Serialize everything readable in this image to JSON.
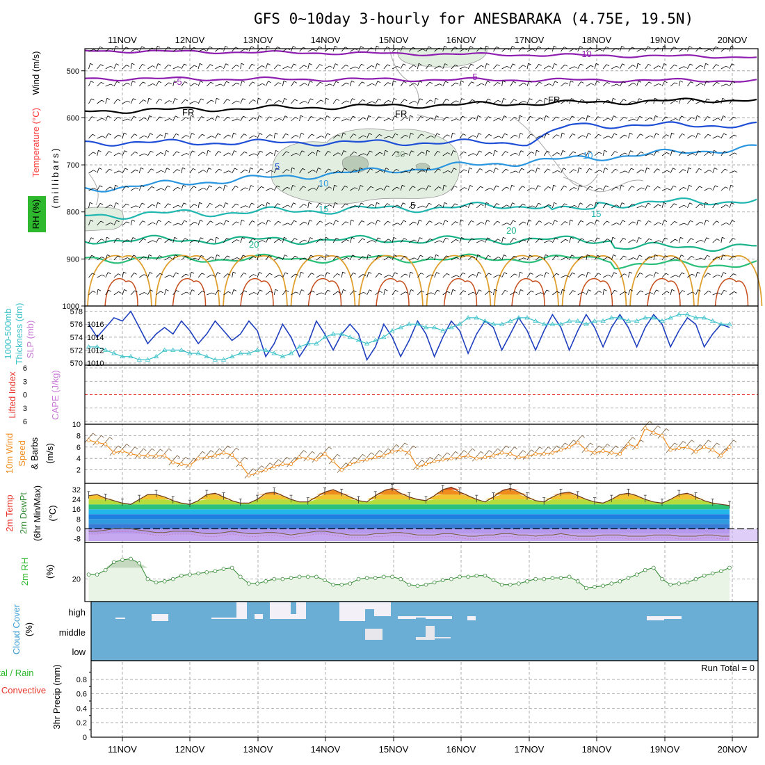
{
  "title": "GFS 0~10day 3-hourly for ANESBARAKA (4.75E, 19.5N)",
  "dates": [
    "11NOV",
    "12NOV",
    "13NOV",
    "14NOV",
    "15NOV",
    "16NOV",
    "17NOV",
    "18NOV",
    "19NOV",
    "20NOV"
  ],
  "colors": {
    "wind_temp_rh": [
      "#000000",
      "#ff3b3b",
      "#000000",
      "#2db82d"
    ],
    "slp": "#1f3fbf",
    "thickness": "#3cc2c9",
    "lifted_index": "#e8342a",
    "cape": "#c879d6",
    "wind10m": "#f08c1e",
    "temp2m": "#e8342a",
    "dewpt": "#3b8f3b",
    "minmax": "#333333",
    "rh2m": "#2db82d",
    "cloud": "#3b9dd6",
    "precip_total": "#2db82d",
    "precip_conv": "#e8342a"
  },
  "panels": {
    "wind_temp_rh": {
      "label_lines": [
        "Wind (m/s)",
        "Temperature (°C)",
        "(millibars)",
        "RH (%)"
      ],
      "yticks": [
        "500",
        "600",
        "700",
        "800",
        "900",
        "1000"
      ],
      "contour_labels": [
        "-10",
        "-5",
        "-5",
        "FR",
        "FR",
        "FR",
        "5",
        "10",
        "10",
        "15",
        "15",
        "20",
        "20",
        "30",
        "5"
      ]
    },
    "slp_thickness": {
      "label_lines": [
        "1000-500mb",
        "Thickness (dm)",
        "SLP (mb)"
      ],
      "left_ticks": [
        "578",
        "576",
        "574",
        "572",
        "570"
      ],
      "right_ticks": [
        "1016",
        "1014",
        "1012",
        "1010"
      ]
    },
    "cape_li": {
      "label_lines": [
        "Lifted Index",
        "CAPE (J/kg)"
      ],
      "yticks": [
        "6",
        "3",
        "0",
        "3",
        "6"
      ]
    },
    "wind10m": {
      "label_lines": [
        "10m Wind",
        "Speed",
        "& Barbs",
        "(m/s)"
      ],
      "yticks": [
        "10",
        "8",
        "6",
        "4",
        "2"
      ]
    },
    "temp2m": {
      "label_lines": [
        "2m Temp",
        "2m DewPt",
        "(6hr Min/Max)",
        "(°C)"
      ],
      "yticks": [
        "32",
        "24",
        "16",
        "8",
        "0",
        "-8"
      ]
    },
    "rh2m": {
      "label_lines": [
        "2m RH",
        "(%)"
      ],
      "yticks": [
        "20"
      ]
    },
    "cloud": {
      "label_lines": [
        "Cloud Cover",
        "(%)"
      ],
      "levels": [
        "high",
        "middle",
        "low"
      ]
    },
    "precip": {
      "label_lines": [
        "Total / Rain",
        "Convective",
        "3hr Precip (mm)"
      ],
      "yticks": [
        "0.8",
        "0.6",
        "0.4",
        "0.2",
        "0"
      ],
      "run_total": "Run Total = 0"
    }
  },
  "chart_data": [
    {
      "type": "line",
      "name": "SLP (mb)",
      "x_unit": "3-hourly steps from 10NOV 12Z",
      "ylim": [
        1010,
        1018.5
      ],
      "values": [
        1016.0,
        1014.0,
        1015.5,
        1017.0,
        1016.5,
        1018.0,
        1015.5,
        1013.0,
        1014.5,
        1015.5,
        1014.5,
        1016.5,
        1015.0,
        1013.0,
        1014.5,
        1016.5,
        1015.0,
        1013.5,
        1014.5,
        1016.5,
        1015.0,
        1011.0,
        1013.0,
        1016.0,
        1014.0,
        1011.0,
        1013.0,
        1016.5,
        1014.5,
        1012.0,
        1014.5,
        1016.0,
        1014.5,
        1010.5,
        1012.5,
        1016.0,
        1014.0,
        1011.0,
        1013.5,
        1016.5,
        1014.5,
        1011.0,
        1014.0,
        1016.5,
        1015.0,
        1011.5,
        1014.5,
        1016.5,
        1015.5,
        1012.0,
        1014.5,
        1017.0,
        1015.0,
        1012.0,
        1015.0,
        1017.5,
        1015.5,
        1012.0,
        1015.0,
        1017.5,
        1015.5,
        1012.5,
        1015.5,
        1017.5,
        1015.5,
        1012.5,
        1015.5,
        1017.5,
        1016.0,
        1012.5,
        1015.0,
        1017.0,
        1016.0,
        1012.5,
        1014.5,
        1016.0,
        1015.5
      ]
    },
    {
      "type": "line",
      "name": "1000-500mb Thickness (dm)",
      "ylim": [
        570,
        578.5
      ],
      "values": [
        572.5,
        572.5,
        572.0,
        571.5,
        571.0,
        571.0,
        570.5,
        570.5,
        571.0,
        572.0,
        572.0,
        572.0,
        571.5,
        571.5,
        571.0,
        570.5,
        570.5,
        571.0,
        571.5,
        571.5,
        572.0,
        572.0,
        571.5,
        571.0,
        571.5,
        572.5,
        573.0,
        573.0,
        574.0,
        574.5,
        574.5,
        574.0,
        573.5,
        573.0,
        573.5,
        574.0,
        575.0,
        575.5,
        576.0,
        576.0,
        575.5,
        575.5,
        575.0,
        575.5,
        576.0,
        577.0,
        577.0,
        576.5,
        576.0,
        576.0,
        576.5,
        577.0,
        577.0,
        576.5,
        576.0,
        576.0,
        576.0,
        576.5,
        576.5,
        576.0,
        576.5,
        576.5,
        577.0,
        577.0,
        576.5,
        576.5,
        577.0,
        577.0,
        576.5,
        577.0,
        577.5,
        577.5,
        577.0,
        577.0,
        576.5,
        576.0,
        576.0
      ]
    },
    {
      "type": "line",
      "name": "10m Wind Speed (m/s)",
      "ylim": [
        0,
        10
      ],
      "values": [
        7.2,
        6.8,
        6.5,
        5.0,
        5.3,
        4.8,
        4.5,
        4.5,
        4.4,
        4.5,
        3.3,
        3.0,
        2.8,
        4.0,
        4.2,
        4.5,
        5.0,
        4.6,
        3.0,
        1.0,
        1.5,
        2.0,
        2.6,
        3.0,
        3.0,
        4.2,
        4.0,
        3.8,
        4.8,
        3.5,
        2.0,
        3.0,
        3.5,
        3.8,
        4.2,
        4.5,
        5.2,
        5.5,
        5.0,
        2.5,
        3.0,
        3.5,
        3.8,
        4.0,
        4.2,
        4.5,
        4.0,
        4.2,
        4.5,
        5.0,
        4.8,
        4.2,
        4.3,
        4.8,
        4.8,
        5.0,
        5.5,
        6.0,
        6.8,
        5.5,
        5.0,
        5.3,
        5.0,
        4.8,
        6.5,
        6.0,
        9.3,
        8.5,
        8.0,
        5.5,
        5.8,
        6.0,
        5.2,
        6.0,
        5.5,
        4.5,
        6.0
      ]
    },
    {
      "type": "area",
      "name": "2m Temp (°C)",
      "ylim": [
        -10,
        36
      ],
      "values": [
        27,
        28,
        25,
        23,
        21,
        20,
        24,
        28,
        28,
        26,
        23,
        21,
        20,
        23,
        28,
        29,
        26,
        23,
        21,
        21,
        24,
        29,
        30,
        27,
        24,
        22,
        22,
        26,
        30,
        32,
        29,
        26,
        23,
        22,
        27,
        31,
        33,
        29,
        26,
        24,
        23,
        27,
        32,
        34,
        30,
        27,
        24,
        22,
        26,
        31,
        33,
        30,
        26,
        23,
        22,
        26,
        29,
        30,
        27,
        24,
        22,
        21,
        24,
        28,
        29,
        27,
        24,
        22,
        21,
        24,
        28,
        29,
        26,
        23,
        21,
        20,
        19
      ]
    },
    {
      "type": "line",
      "name": "2m DewPt (°C)",
      "ylim": [
        -10,
        36
      ],
      "values": [
        -2,
        -2,
        -1,
        0,
        0,
        0,
        -1,
        -2,
        -3,
        -3,
        -2,
        -2,
        -2,
        -3,
        -4,
        -4,
        -3,
        -2,
        -3,
        -4,
        -4,
        -3,
        -3,
        -4,
        -5,
        -4,
        -3,
        -2,
        -2,
        -3,
        -4,
        -5,
        -5,
        -5,
        -4,
        -4,
        -3,
        -3,
        -4,
        -5,
        -5,
        -5,
        -4,
        -4,
        -5,
        -6,
        -6,
        -5,
        -5,
        -4,
        -4,
        -5,
        -5,
        -6,
        -5,
        -5,
        -4,
        -5,
        -6,
        -6,
        -6,
        -5,
        -5,
        -5,
        -6,
        -6,
        -6,
        -5,
        -5,
        -5,
        -6,
        -6,
        -6,
        -5,
        -5,
        -6,
        -6
      ]
    },
    {
      "type": "area",
      "name": "2m RH (%)",
      "ylim": [
        0,
        50
      ],
      "values": [
        24,
        24,
        28,
        35,
        37,
        38,
        34,
        20,
        17,
        18,
        20,
        23,
        24,
        25,
        26,
        27,
        29,
        30,
        22,
        16,
        16,
        18,
        20,
        20,
        21,
        22,
        22,
        22,
        19,
        15,
        15,
        16,
        20,
        21,
        21,
        22,
        22,
        20,
        15,
        14,
        15,
        17,
        19,
        20,
        22,
        22,
        23,
        23,
        19,
        15,
        15,
        16,
        18,
        20,
        20,
        21,
        21,
        22,
        18,
        12,
        13,
        14,
        16,
        18,
        21,
        24,
        28,
        30,
        20,
        15,
        16,
        17,
        20,
        23,
        25,
        27,
        30
      ]
    },
    {
      "type": "table",
      "name": "3hr Precip (mm)",
      "ylim": [
        0,
        1.0
      ],
      "values": [
        0
      ]
    }
  ]
}
